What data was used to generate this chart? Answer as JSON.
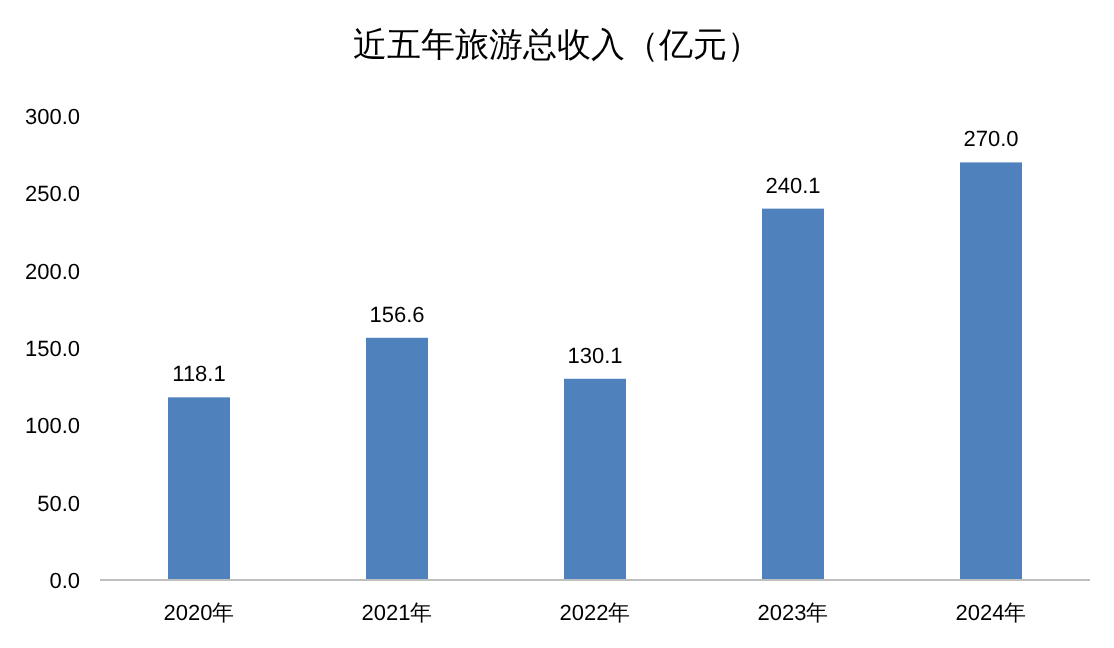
{
  "chart_data": {
    "type": "bar",
    "title": "近五年旅游总收入（亿元）",
    "categories": [
      "2020年",
      "2021年",
      "2022年",
      "2023年",
      "2024年"
    ],
    "values": [
      118.1,
      156.6,
      130.1,
      240.1,
      270.0
    ],
    "value_labels": [
      "118.1",
      "156.6",
      "130.1",
      "240.1",
      "270.0"
    ],
    "color": "#4f81bd",
    "ylim": [
      0,
      300
    ],
    "yticks": [
      {
        "value": 0,
        "label": "0.0"
      },
      {
        "value": 50,
        "label": "50.0"
      },
      {
        "value": 100,
        "label": "100.0"
      },
      {
        "value": 150,
        "label": "150.0"
      },
      {
        "value": 200,
        "label": "200.0"
      },
      {
        "value": 250,
        "label": "250.0"
      },
      {
        "value": 300,
        "label": "300.0"
      }
    ],
    "grid": false
  }
}
